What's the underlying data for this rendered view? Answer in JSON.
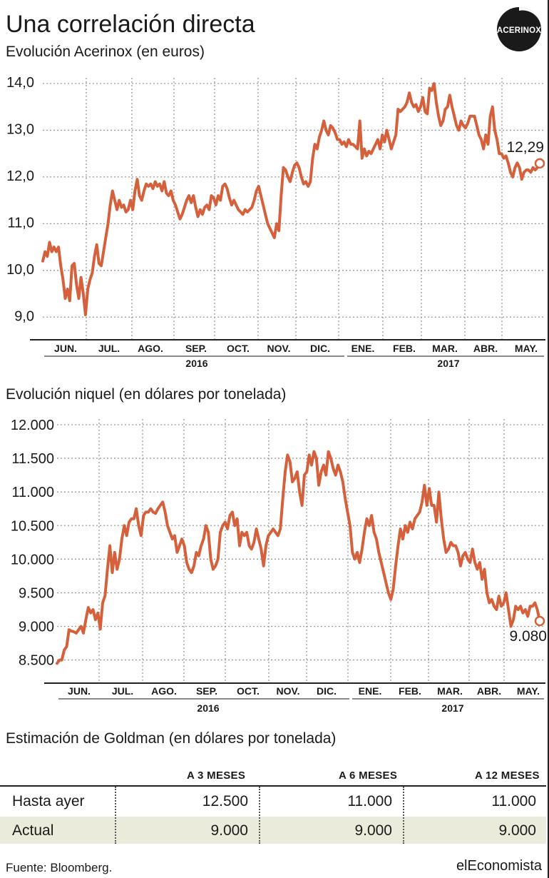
{
  "header": {
    "title": "Una correlación directa",
    "subtitle": "Evolución Acerinox (en euros)",
    "logo_text": "ACERINOX"
  },
  "accent_color": "#d4613c",
  "chart_data": [
    {
      "type": "line",
      "title": "Evolución Acerinox (en euros)",
      "ylim": [
        8.5,
        14.0
      ],
      "yticks": [
        "14,0",
        "13,0",
        "12,0",
        "11,0",
        "10,0",
        "9,0"
      ],
      "ytick_values": [
        14,
        13,
        12,
        11,
        10,
        9
      ],
      "months": [
        "JUN.",
        "JUL.",
        "AGO.",
        "SEP.",
        "OCT.",
        "NOV.",
        "DIC.",
        "ENE.",
        "FEB.",
        "MAR.",
        "ABR.",
        "MAY."
      ],
      "years": [
        "2016",
        "2017"
      ],
      "last_label": "12,29",
      "last_value": 12.29,
      "series": [
        {
          "values": [
            10.2,
            10.4,
            10.3,
            10.6,
            10.4,
            10.5,
            10.4,
            10.5,
            10.1,
            9.8,
            9.4,
            9.6,
            9.35,
            10.1,
            10.15,
            9.7,
            9.4,
            9.85,
            9.5,
            9.05,
            9.6,
            9.8,
            9.95,
            10.3,
            10.55,
            10.15,
            10.1,
            10.4,
            10.7,
            11.0,
            11.4,
            11.7,
            11.5,
            11.3,
            11.5,
            11.35,
            11.4,
            11.25,
            11.3,
            11.5,
            11.3,
            11.7,
            11.95,
            11.6,
            11.5,
            11.7,
            11.85,
            11.8,
            11.85,
            11.75,
            11.9,
            11.8,
            11.85,
            11.7,
            11.9,
            11.65,
            11.6,
            11.7,
            11.5,
            11.4,
            11.25,
            11.1,
            11.2,
            11.35,
            11.5,
            11.6,
            11.45,
            11.6,
            11.35,
            11.15,
            11.3,
            11.2,
            11.35,
            11.4,
            11.3,
            11.6,
            11.55,
            11.4,
            11.6,
            11.5,
            11.8,
            11.85,
            11.75,
            11.55,
            11.4,
            11.5,
            11.4,
            11.3,
            11.25,
            11.2,
            11.3,
            11.25,
            11.3,
            11.35,
            11.5,
            11.7,
            11.8,
            11.6,
            11.4,
            11.2,
            11.0,
            10.9,
            10.8,
            10.7,
            11.0,
            10.85,
            11.6,
            12.2,
            12.15,
            12.0,
            11.9,
            12.1,
            12.25,
            12.3,
            12.2,
            12.0,
            11.85,
            11.9,
            11.8,
            11.9,
            12.4,
            12.7,
            12.6,
            12.85,
            13.0,
            13.2,
            13.0,
            12.9,
            13.1,
            13.05,
            12.95,
            12.8,
            12.8,
            12.7,
            12.75,
            12.65,
            12.8,
            12.7,
            12.7,
            12.65,
            12.6,
            13.2,
            12.4,
            12.6,
            12.45,
            12.55,
            12.5,
            12.6,
            12.7,
            12.8,
            12.6,
            12.9,
            12.75,
            13.0,
            12.8,
            12.6,
            12.75,
            12.9,
            13.45,
            13.4,
            13.45,
            13.5,
            13.6,
            13.8,
            13.6,
            13.5,
            13.55,
            13.4,
            13.5,
            13.7,
            13.4,
            13.35,
            13.9,
            13.85,
            14.0,
            13.6,
            13.3,
            13.1,
            13.2,
            13.45,
            13.5,
            13.75,
            13.5,
            13.3,
            13.1,
            13.0,
            13.2,
            13.1,
            13.05,
            13.15,
            13.3,
            13.3,
            13.3,
            13.1,
            12.9,
            12.8,
            12.6,
            12.9,
            12.7,
            13.3,
            13.5,
            13.0,
            12.8,
            12.5,
            12.5,
            12.4,
            12.45,
            12.3,
            12.1,
            12.0,
            12.2,
            12.3,
            12.2,
            11.95,
            12.1,
            12.15,
            12.15,
            12.1,
            12.2,
            12.15,
            12.2,
            12.29
          ]
        }
      ]
    },
    {
      "type": "line",
      "title": "Evolución niquel (en dólares por tonelada)",
      "ylim": [
        8400,
        12000
      ],
      "yticks": [
        "12.000",
        "11.500",
        "11.000",
        "10.500",
        "10.000",
        "9.500",
        "9.000",
        "8.500"
      ],
      "ytick_values": [
        12000,
        11500,
        11000,
        10500,
        10000,
        9500,
        9000,
        8500
      ],
      "months": [
        "JUN.",
        "JUL.",
        "AGO.",
        "SEP.",
        "OCT.",
        "NOV.",
        "DIC.",
        "ENE.",
        "FEB.",
        "MAR.",
        "ABR.",
        "MAY."
      ],
      "years": [
        "2016",
        "2017"
      ],
      "last_label": "9.080",
      "last_value": 9080,
      "series": [
        {
          "values": [
            8450,
            8500,
            8500,
            8650,
            8700,
            8950,
            8930,
            8920,
            8900,
            8950,
            9000,
            8900,
            9100,
            9280,
            9200,
            9250,
            9100,
            9200,
            8960,
            9350,
            9460,
            9850,
            10200,
            9800,
            10100,
            9850,
            10000,
            10300,
            10500,
            10350,
            10550,
            10600,
            10600,
            10750,
            10500,
            10350,
            10650,
            10700,
            10700,
            10750,
            10700,
            10680,
            10750,
            10800,
            10850,
            10700,
            10500,
            10400,
            10300,
            10350,
            10100,
            10200,
            10300,
            10200,
            9950,
            9850,
            9800,
            9900,
            10100,
            10050,
            10200,
            10300,
            10500,
            10400,
            10000,
            9850,
            9900,
            10000,
            10400,
            10500,
            10550,
            10450,
            10650,
            10700,
            10500,
            10600,
            10200,
            10400,
            10350,
            10400,
            10200,
            10150,
            10250,
            10450,
            10300,
            10150,
            9900,
            10200,
            10350,
            10400,
            10450,
            10400,
            10350,
            10450,
            10900,
            11300,
            11550,
            11450,
            11150,
            11200,
            11300,
            11000,
            10800,
            11250,
            11300,
            11550,
            11400,
            11600,
            11500,
            11100,
            11300,
            11400,
            11250,
            11600,
            11500,
            11350,
            11250,
            11400,
            11300,
            11150,
            10900,
            10700,
            10500,
            10100,
            10000,
            10100,
            9950,
            10150,
            10400,
            10600,
            10500,
            10650,
            10400,
            10300,
            10100,
            9950,
            9800,
            9650,
            9500,
            9400,
            9550,
            9900,
            10200,
            10450,
            10300,
            10500,
            10400,
            10550,
            10450,
            10600,
            10650,
            10700,
            10850,
            11100,
            10800,
            11050,
            10800,
            10800,
            10550,
            11000,
            10600,
            10300,
            10100,
            10150,
            10250,
            10200,
            10200,
            10100,
            9900,
            10050,
            10100,
            10000,
            9950,
            10150,
            9950,
            9850,
            9950,
            9700,
            9850,
            9500,
            9350,
            9400,
            9300,
            9250,
            9450,
            9300,
            9350,
            9500,
            9250,
            9000,
            9100,
            9300,
            9250,
            9300,
            9200,
            9250,
            9150,
            9300,
            9300,
            9350,
            9250,
            9080
          ]
        }
      ]
    }
  ],
  "nickel_title": "Evolución niquel (en dólares por tonelada)",
  "goldman": {
    "title": "Estimación de Goldman (en dólares por tonelada)",
    "headers": [
      "A 3 MESES",
      "A 6 MESES",
      "A 12 MESES"
    ],
    "rows": [
      {
        "label": "Hasta ayer",
        "values": [
          "12.500",
          "11.000",
          "11.000"
        ]
      },
      {
        "label": "Actual",
        "values": [
          "9.000",
          "9.000",
          "9.000"
        ]
      }
    ]
  },
  "footer": {
    "source": "Fuente: Bloomberg.",
    "brand": "elEconomista"
  }
}
